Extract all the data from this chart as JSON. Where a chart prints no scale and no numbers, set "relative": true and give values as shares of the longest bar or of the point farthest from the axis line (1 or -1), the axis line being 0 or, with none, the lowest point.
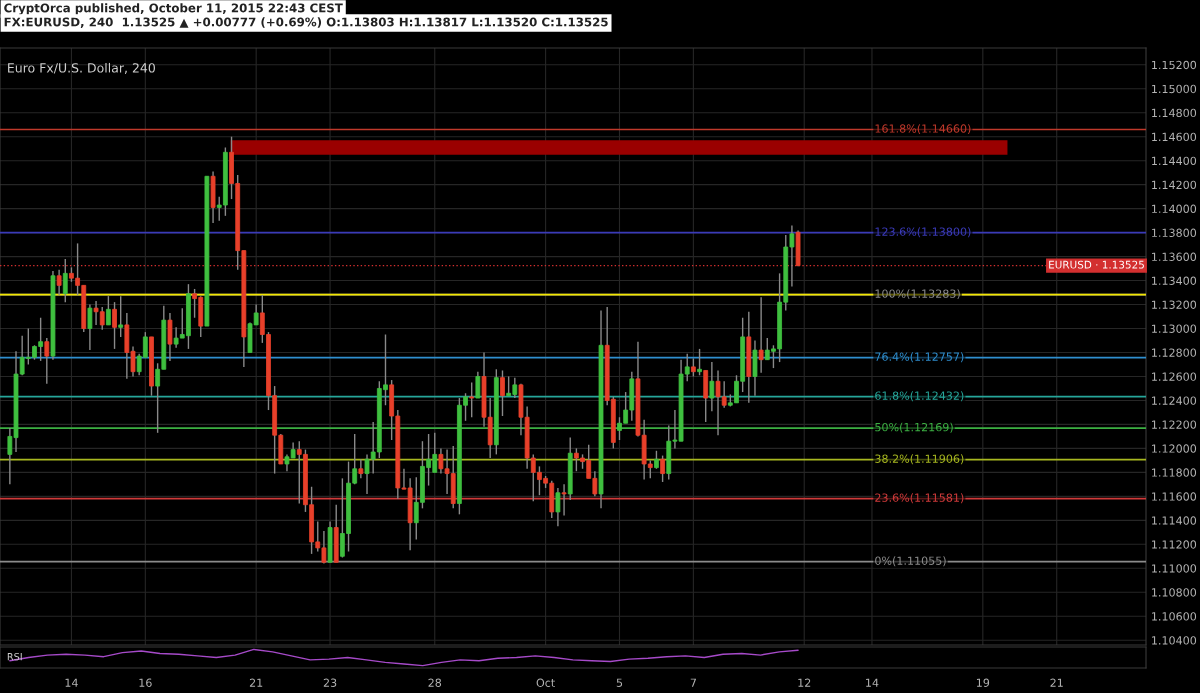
{
  "chart_data": [
    {
      "type": "candlestick",
      "title": "Euro Fx/U.S. Dollar, 240",
      "annotations": [
        "CryptOrca published, October 11, 2015 22:43 CEST",
        "FX:EURUSD, 240  1.13525 ▲ +0.00777 (+0.69%) O:1.13803 H:1.13817 L:1.13520 C:1.13525"
      ],
      "categories": [
        null,
        null,
        null,
        null,
        null,
        null,
        null,
        null,
        null,
        null,
        "14",
        null,
        null,
        null,
        null,
        null,
        null,
        null,
        null,
        null,
        null,
        null,
        "16",
        null,
        null,
        null,
        null,
        null,
        null,
        null,
        null,
        null,
        null,
        null,
        null,
        null,
        null,
        null,
        null,
        null,
        "21",
        null,
        null,
        null,
        null,
        null,
        null,
        null,
        null,
        null,
        null,
        null,
        "23",
        null,
        null,
        null,
        null,
        null,
        null,
        null,
        null,
        null,
        null,
        null,
        null,
        null,
        null,
        null,
        null,
        "28",
        null,
        null,
        null,
        null,
        null,
        null,
        null,
        null,
        null,
        null,
        null,
        null,
        null,
        null,
        null,
        null,
        null,
        "Oct",
        null,
        null,
        null,
        null,
        null,
        null,
        null,
        null,
        null,
        null,
        null,
        "5",
        null,
        null,
        null,
        null,
        null,
        null,
        null,
        null,
        null,
        null,
        null,
        "7",
        null,
        null,
        null,
        null,
        null,
        null,
        null,
        null,
        null,
        null,
        null,
        null,
        null,
        null,
        null,
        null,
        null,
        "12",
        null,
        null,
        null,
        null,
        null,
        null,
        null,
        null,
        null,
        null,
        "14",
        null,
        null,
        null,
        null,
        null,
        null,
        null,
        null,
        null,
        null,
        null,
        null,
        null,
        null,
        null,
        null,
        null,
        "19",
        null,
        null,
        null,
        null,
        null,
        null,
        null,
        null,
        null,
        null,
        null,
        "21",
        null,
        null,
        null,
        null,
        null,
        null,
        null,
        null,
        null,
        null,
        null,
        null,
        null,
        null
      ],
      "ohlc": [
        [
          1.1195,
          1.1217,
          1.117,
          1.121
        ],
        [
          1.1209,
          1.1281,
          1.1197,
          1.1262
        ],
        [
          1.1262,
          1.1294,
          1.1261,
          1.1276
        ],
        [
          1.1275,
          1.13,
          1.127,
          1.1276
        ],
        [
          1.1276,
          1.1286,
          1.1274,
          1.1285
        ],
        [
          1.1285,
          1.1309,
          1.1273,
          1.1289
        ],
        [
          1.1289,
          1.1292,
          1.1254,
          1.1277
        ],
        [
          1.1277,
          1.1348,
          1.1274,
          1.1344
        ],
        [
          1.1344,
          1.1349,
          1.1328,
          1.1336
        ],
        [
          1.1329,
          1.1358,
          1.1322,
          1.1346
        ],
        [
          1.1346,
          1.1351,
          1.1339,
          1.1342
        ],
        [
          1.1342,
          1.1371,
          1.1328,
          1.1336
        ],
        [
          1.1336,
          1.1336,
          1.1297,
          1.13
        ],
        [
          1.13,
          1.132,
          1.1282,
          1.1317
        ],
        [
          1.1317,
          1.1323,
          1.1303,
          1.1314
        ],
        [
          1.1314,
          1.1318,
          1.1299,
          1.1303
        ],
        [
          1.1303,
          1.1327,
          1.1303,
          1.1316
        ],
        [
          1.1316,
          1.1322,
          1.1283,
          1.1301
        ],
        [
          1.1301,
          1.1327,
          1.1293,
          1.1303
        ],
        [
          1.1303,
          1.1313,
          1.1258,
          1.128
        ],
        [
          1.1281,
          1.1285,
          1.126,
          1.1264
        ],
        [
          1.1264,
          1.1279,
          1.1261,
          1.1277
        ],
        [
          1.1276,
          1.1297,
          1.1276,
          1.1293
        ],
        [
          1.1293,
          1.1293,
          1.1244,
          1.1252
        ],
        [
          1.1252,
          1.1271,
          1.1213,
          1.1266
        ],
        [
          1.1266,
          1.1319,
          1.1266,
          1.1307
        ],
        [
          1.1307,
          1.1313,
          1.1273,
          1.1287
        ],
        [
          1.1287,
          1.1301,
          1.1284,
          1.1292
        ],
        [
          1.1292,
          1.1317,
          1.1292,
          1.1295
        ],
        [
          1.1294,
          1.1337,
          1.1283,
          1.1329
        ],
        [
          1.1329,
          1.1333,
          1.1309,
          1.1325
        ],
        [
          1.1326,
          1.1327,
          1.1293,
          1.1302
        ],
        [
          1.1302,
          1.1427,
          1.1302,
          1.1427
        ],
        [
          1.1427,
          1.1431,
          1.1388,
          1.1401
        ],
        [
          1.1401,
          1.141,
          1.139,
          1.1403
        ],
        [
          1.1403,
          1.1451,
          1.1394,
          1.1447
        ],
        [
          1.1447,
          1.146,
          1.1408,
          1.1421
        ],
        [
          1.1421,
          1.1428,
          1.1349,
          1.1365
        ],
        [
          1.1365,
          1.1365,
          1.1268,
          1.1293
        ],
        [
          1.128,
          1.1305,
          1.128,
          1.1304
        ],
        [
          1.1303,
          1.132,
          1.1303,
          1.1313
        ],
        [
          1.1313,
          1.1328,
          1.1288,
          1.1295
        ],
        [
          1.1295,
          1.1297,
          1.1232,
          1.1244
        ],
        [
          1.1244,
          1.1252,
          1.1179,
          1.1211
        ],
        [
          1.1211,
          1.1212,
          1.1187,
          1.1187
        ],
        [
          1.1187,
          1.1195,
          1.1181,
          1.1193
        ],
        [
          1.1192,
          1.1205,
          1.1192,
          1.1199
        ],
        [
          1.1199,
          1.1206,
          1.1154,
          1.1195
        ],
        [
          1.1195,
          1.1199,
          1.1147,
          1.1153
        ],
        [
          1.1153,
          1.1168,
          1.1112,
          1.1122
        ],
        [
          1.1122,
          1.1139,
          1.1114,
          1.1117
        ],
        [
          1.1117,
          1.1131,
          1.1104,
          1.1105
        ],
        [
          1.1105,
          1.1139,
          1.1105,
          1.1134
        ],
        [
          1.1134,
          1.1153,
          1.1105,
          1.1105
        ],
        [
          1.111,
          1.1175,
          1.1109,
          1.1129
        ],
        [
          1.1129,
          1.1189,
          1.1114,
          1.1171
        ],
        [
          1.1171,
          1.1212,
          1.117,
          1.1183
        ],
        [
          1.1183,
          1.1191,
          1.1175,
          1.1179
        ],
        [
          1.1179,
          1.1195,
          1.1162,
          1.1191
        ],
        [
          1.1191,
          1.1222,
          1.1179,
          1.1197
        ],
        [
          1.1197,
          1.1256,
          1.1192,
          1.125
        ],
        [
          1.1249,
          1.1295,
          1.1236,
          1.1253
        ],
        [
          1.1253,
          1.1257,
          1.1207,
          1.1227
        ],
        [
          1.1227,
          1.1232,
          1.1158,
          1.1167
        ],
        [
          1.1167,
          1.1183,
          1.1166,
          1.1166
        ],
        [
          1.1167,
          1.1175,
          1.1115,
          1.1138
        ],
        [
          1.1138,
          1.1176,
          1.1124,
          1.1155
        ],
        [
          1.1155,
          1.1206,
          1.115,
          1.1185
        ],
        [
          1.1184,
          1.1212,
          1.1169,
          1.1191
        ],
        [
          1.118,
          1.1213,
          1.118,
          1.1195
        ],
        [
          1.1195,
          1.12,
          1.1179,
          1.1183
        ],
        [
          1.1183,
          1.1199,
          1.1162,
          1.1179
        ],
        [
          1.1179,
          1.1202,
          1.115,
          1.1154
        ],
        [
          1.1154,
          1.1242,
          1.1145,
          1.1236
        ],
        [
          1.1236,
          1.1246,
          1.1223,
          1.1243
        ],
        [
          1.1243,
          1.1255,
          1.1226,
          1.1242
        ],
        [
          1.1242,
          1.1264,
          1.1242,
          1.126
        ],
        [
          1.126,
          1.128,
          1.1218,
          1.1226
        ],
        [
          1.1226,
          1.1242,
          1.1192,
          1.1203
        ],
        [
          1.1203,
          1.1266,
          1.1195,
          1.1259
        ],
        [
          1.1259,
          1.1265,
          1.1227,
          1.1244
        ],
        [
          1.1244,
          1.126,
          1.1244,
          1.1246
        ],
        [
          1.1245,
          1.1259,
          1.1242,
          1.1253
        ],
        [
          1.1253,
          1.1254,
          1.1211,
          1.1226
        ],
        [
          1.1226,
          1.1235,
          1.1183,
          1.1192
        ],
        [
          1.1192,
          1.1195,
          1.1156,
          1.118
        ],
        [
          1.118,
          1.1185,
          1.1161,
          1.1174
        ],
        [
          1.1175,
          1.1177,
          1.1167,
          1.1171
        ],
        [
          1.1171,
          1.1173,
          1.1142,
          1.1147
        ],
        [
          1.1147,
          1.1167,
          1.1135,
          1.1163
        ],
        [
          1.1163,
          1.117,
          1.1144,
          1.1162
        ],
        [
          1.1162,
          1.1209,
          1.1157,
          1.1196
        ],
        [
          1.1196,
          1.12,
          1.1181,
          1.1192
        ],
        [
          1.1192,
          1.1195,
          1.1183,
          1.1189
        ],
        [
          1.119,
          1.1203,
          1.1175,
          1.1175
        ],
        [
          1.1175,
          1.1181,
          1.116,
          1.1162
        ],
        [
          1.1162,
          1.1315,
          1.115,
          1.1286
        ],
        [
          1.1286,
          1.1318,
          1.1236,
          1.124
        ],
        [
          1.1241,
          1.1243,
          1.12,
          1.1205
        ],
        [
          1.1215,
          1.1226,
          1.1207,
          1.1221
        ],
        [
          1.1221,
          1.1247,
          1.1221,
          1.1232
        ],
        [
          1.1232,
          1.1264,
          1.1223,
          1.1258
        ],
        [
          1.1258,
          1.1289,
          1.121,
          1.1211
        ],
        [
          1.1211,
          1.1224,
          1.1174,
          1.1187
        ],
        [
          1.1187,
          1.119,
          1.1175,
          1.1184
        ],
        [
          1.1184,
          1.1198,
          1.1183,
          1.1191
        ],
        [
          1.1191,
          1.1194,
          1.1172,
          1.1179
        ],
        [
          1.1179,
          1.1219,
          1.1174,
          1.1206
        ],
        [
          1.1206,
          1.1232,
          1.12,
          1.1207
        ],
        [
          1.1206,
          1.1274,
          1.1206,
          1.1262
        ],
        [
          1.1262,
          1.1279,
          1.1256,
          1.1268
        ],
        [
          1.1268,
          1.1275,
          1.126,
          1.1264
        ],
        [
          1.1264,
          1.1283,
          1.1261,
          1.1266
        ],
        [
          1.1265,
          1.1265,
          1.1222,
          1.1242
        ],
        [
          1.1242,
          1.1272,
          1.1231,
          1.1256
        ],
        [
          1.1256,
          1.1265,
          1.1211,
          1.1243
        ],
        [
          1.1243,
          1.1256,
          1.1234,
          1.1236
        ],
        [
          1.1236,
          1.1245,
          1.1235,
          1.1238
        ],
        [
          1.1238,
          1.1261,
          1.1238,
          1.1256
        ],
        [
          1.1256,
          1.1309,
          1.1247,
          1.1293
        ],
        [
          1.1293,
          1.1314,
          1.1238,
          1.126
        ],
        [
          1.126,
          1.129,
          1.1244,
          1.1282
        ],
        [
          1.1282,
          1.1326,
          1.1263,
          1.1274
        ],
        [
          1.1274,
          1.1292,
          1.1274,
          1.1282
        ],
        [
          1.1281,
          1.1286,
          1.1267,
          1.1283
        ],
        [
          1.1283,
          1.1346,
          1.1272,
          1.1322
        ],
        [
          1.1322,
          1.1378,
          1.1315,
          1.1368
        ],
        [
          1.1368,
          1.1386,
          1.1335,
          1.1379
        ],
        [
          1.13803,
          1.13817,
          1.1352,
          1.13525
        ],
        null,
        null,
        null,
        null,
        null,
        null,
        null,
        null,
        null,
        null,
        null,
        null,
        null,
        null,
        null,
        null,
        null,
        null,
        null,
        null,
        null,
        null,
        null,
        null,
        null,
        null,
        null,
        null,
        null,
        null,
        null,
        null,
        null,
        null,
        null,
        null,
        null,
        null,
        null,
        null,
        null,
        null,
        null,
        null,
        null,
        null,
        null,
        null,
        null,
        null,
        null,
        null,
        null,
        null,
        null,
        null
      ],
      "colors": [
        "#3fbf3f",
        "#3fbf3f",
        "#3fbf3f",
        "#3fbf3f",
        "#3fbf3f",
        "#3fbf3f",
        "#e8402a",
        "#3fbf3f",
        "#e8402a",
        "#3fbf3f",
        "#e8402a",
        "#e8402a",
        "#e8402a",
        "#3fbf3f",
        "#e8402a",
        "#e8402a",
        "#3fbf3f",
        "#e8402a",
        "#3fbf3f",
        "#e8402a",
        "#e8402a",
        "#3fbf3f",
        "#3fbf3f",
        "#e8402a",
        "#3fbf3f",
        "#3fbf3f",
        "#e8402a",
        "#3fbf3f",
        "#3fbf3f",
        "#3fbf3f",
        "#e8402a",
        "#e8402a",
        "#3fbf3f",
        "#e8402a",
        "#3fbf3f",
        "#3fbf3f",
        "#e8402a",
        "#e8402a",
        "#e8402a",
        "#3fbf3f",
        "#3fbf3f",
        "#e8402a",
        "#e8402a",
        "#e8402a",
        "#e8402a",
        "#3fbf3f",
        "#3fbf3f",
        "#e8402a",
        "#e8402a",
        "#e8402a",
        "#e8402a",
        "#e8402a",
        "#3fbf3f",
        "#e8402a",
        "#3fbf3f",
        "#3fbf3f",
        "#3fbf3f",
        "#e8402a",
        "#3fbf3f",
        "#3fbf3f",
        "#3fbf3f",
        "#3fbf3f",
        "#e8402a",
        "#e8402a",
        "#e8402a",
        "#e8402a",
        "#3fbf3f",
        "#3fbf3f",
        "#3fbf3f",
        "#3fbf3f",
        "#e8402a",
        "#e8402a",
        "#e8402a",
        "#3fbf3f",
        "#3fbf3f",
        "#e8402a",
        "#3fbf3f",
        "#e8402a",
        "#e8402a",
        "#3fbf3f",
        "#e8402a",
        "#3fbf3f",
        "#3fbf3f",
        "#e8402a",
        "#e8402a",
        "#e8402a",
        "#e8402a",
        "#e8402a",
        "#e8402a",
        "#3fbf3f",
        "#e8402a",
        "#3fbf3f",
        "#e8402a",
        "#e8402a",
        "#e8402a",
        "#e8402a",
        "#3fbf3f",
        "#e8402a",
        "#e8402a",
        "#3fbf3f",
        "#3fbf3f",
        "#3fbf3f",
        "#e8402a",
        "#e8402a",
        "#e8402a",
        "#3fbf3f",
        "#e8402a",
        "#3fbf3f",
        "#3fbf3f",
        "#3fbf3f",
        "#3fbf3f",
        "#e8402a",
        "#3fbf3f",
        "#e8402a",
        "#3fbf3f",
        "#e8402a",
        "#e8402a",
        "#3fbf3f",
        "#3fbf3f",
        "#3fbf3f",
        "#e8402a",
        "#3fbf3f",
        "#e8402a",
        "#3fbf3f",
        "#3fbf3f",
        "#3fbf3f",
        "#3fbf3f",
        "#3fbf3f",
        "#e8402a",
        null,
        null,
        null,
        null,
        null,
        null,
        null,
        null,
        null,
        null,
        null,
        null,
        null,
        null,
        null,
        null,
        null,
        null,
        null,
        null,
        null,
        null,
        null,
        null,
        null,
        null,
        null,
        null,
        null,
        null,
        null,
        null,
        null,
        null,
        null,
        null,
        null,
        null,
        null,
        null,
        null,
        null,
        null,
        null,
        null,
        null,
        null,
        null,
        null,
        null,
        null,
        null,
        null,
        null,
        null,
        null
      ],
      "ylim": [
        1.1036,
        1.1534
      ],
      "yticks": [
        {
          "value": 1.104,
          "label": "1.10400"
        },
        {
          "value": 1.106,
          "label": "1.10600"
        },
        {
          "value": 1.108,
          "label": "1.10800"
        },
        {
          "value": 1.11,
          "label": "1.11000"
        },
        {
          "value": 1.112,
          "label": "1.11200"
        },
        {
          "value": 1.114,
          "label": "1.11400"
        },
        {
          "value": 1.116,
          "label": "1.11600"
        },
        {
          "value": 1.118,
          "label": "1.11800"
        },
        {
          "value": 1.12,
          "label": "1.12000"
        },
        {
          "value": 1.122,
          "label": "1.12200"
        },
        {
          "value": 1.124,
          "label": "1.12400"
        },
        {
          "value": 1.126,
          "label": "1.12600"
        },
        {
          "value": 1.128,
          "label": "1.12800"
        },
        {
          "value": 1.13,
          "label": "1.13000"
        },
        {
          "value": 1.132,
          "label": "1.13200"
        },
        {
          "value": 1.134,
          "label": "1.13400"
        },
        {
          "value": 1.136,
          "label": "1.13600"
        },
        {
          "value": 1.138,
          "label": "1.13800"
        },
        {
          "value": 1.14,
          "label": "1.14000"
        },
        {
          "value": 1.142,
          "label": "1.14200"
        },
        {
          "value": 1.144,
          "label": "1.14400"
        },
        {
          "value": 1.146,
          "label": "1.14600"
        },
        {
          "value": 1.148,
          "label": "1.14800"
        },
        {
          "value": 1.15,
          "label": "1.15000"
        },
        {
          "value": 1.152,
          "label": "1.15200"
        }
      ],
      "grid": true,
      "bands": [
        {
          "axis": "y",
          "from": 1.1445,
          "to": 1.1457,
          "color": "#9a0000"
        }
      ],
      "ref_lines": [
        {
          "axis": "y",
          "value": 1.1466,
          "label": "161.8%(1.14660)",
          "color": "#c0392b",
          "line_style": "solid"
        },
        {
          "axis": "y",
          "value": 1.138,
          "label": "123.6%(1.13800)",
          "color": "#3a3ab8",
          "line_style": "solid"
        },
        {
          "axis": "y",
          "value": 1.13525,
          "label": "EURUSD · 1.13525",
          "color": "#d32f2f",
          "line_style": "dotted"
        },
        {
          "axis": "y",
          "value": 1.13283,
          "label": "100%(1.13283)",
          "color": "#8c8c8c",
          "line_style": "solid"
        },
        {
          "axis": "y",
          "value": 1.13283,
          "color": "#f2e600",
          "line_style": "solid"
        },
        {
          "axis": "y",
          "value": 1.12757,
          "label": "76.4%(1.12757)",
          "color": "#2f8fd0",
          "line_style": "solid"
        },
        {
          "axis": "y",
          "value": 1.12432,
          "label": "61.8%(1.12432)",
          "color": "#26a69a",
          "line_style": "solid"
        },
        {
          "axis": "y",
          "value": 1.12169,
          "label": "50%(1.12169)",
          "color": "#3cb043",
          "line_style": "solid"
        },
        {
          "axis": "y",
          "value": 1.11906,
          "label": "38.2%(1.11906)",
          "color": "#a8b820",
          "line_style": "solid"
        },
        {
          "axis": "y",
          "value": 1.11581,
          "label": "23.6%(1.11581)",
          "color": "#d03a3a",
          "line_style": "solid"
        },
        {
          "axis": "y",
          "value": 1.11055,
          "label": "0%(1.11055)",
          "color": "#8c8c8c",
          "line_style": "solid"
        }
      ]
    },
    {
      "type": "line",
      "title": "RSI",
      "relative": true,
      "categories": [
        null,
        null,
        null,
        null,
        null,
        null,
        null,
        null,
        null,
        null,
        null,
        null,
        null,
        null,
        null,
        null,
        null,
        null,
        null,
        null,
        null,
        null,
        null,
        null,
        null,
        null,
        null,
        null,
        null,
        null,
        null,
        null,
        null,
        null,
        null,
        null,
        null,
        null,
        null,
        null,
        null,
        null,
        null
      ],
      "series": [
        {
          "color": "#a64ac9",
          "values": [
            0.3,
            0.5,
            0.65,
            0.7,
            0.65,
            0.55,
            0.8,
            0.9,
            0.75,
            0.7,
            0.6,
            0.5,
            0.65,
            1,
            0.85,
            0.6,
            0.35,
            0.4,
            0.5,
            0.35,
            0.2,
            0.1,
            0,
            0.2,
            0.35,
            0.3,
            0.45,
            0.5,
            0.6,
            0.5,
            0.35,
            0.3,
            0.25,
            0.4,
            0.45,
            0.55,
            0.6,
            0.5,
            0.7,
            0.75,
            0.65,
            0.85,
            0.95
          ]
        }
      ]
    }
  ]
}
